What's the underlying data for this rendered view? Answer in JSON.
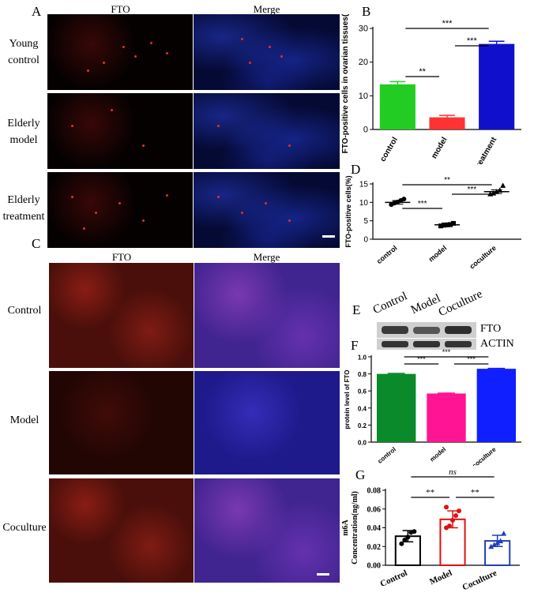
{
  "panels": {
    "A": {
      "letter": "A",
      "col_fto": "FTO",
      "col_merge": "Merge",
      "rows": [
        "Young\ncontrol",
        "Elderly\nmodel",
        "Elderly\ntreatment"
      ]
    },
    "C": {
      "letter": "C",
      "col_fto": "FTO",
      "col_merge": "Merge",
      "rows": [
        "Control",
        "Model",
        "Coculture"
      ]
    },
    "E": {
      "letter": "E",
      "lanes": [
        "Control",
        "Model",
        "Coculture"
      ],
      "band1": "FTO",
      "band2": "ACTIN"
    }
  },
  "chart_data": [
    {
      "panel": "B",
      "type": "bar",
      "categories": [
        "control",
        "model",
        "treatment"
      ],
      "values": [
        13.4,
        3.6,
        25.4
      ],
      "errors": [
        0.8,
        0.6,
        0.8
      ],
      "colors": [
        "#22cc22",
        "#ff3333",
        "#1010cc"
      ],
      "ylabel": "FTO-positive cells in ovarian tissues(%)",
      "ylim": [
        0,
        30
      ],
      "yticks": [
        0,
        10,
        20,
        30
      ],
      "significance": [
        {
          "from": 0,
          "to": 1,
          "label": "**"
        },
        {
          "from": 1,
          "to": 2,
          "label": "***"
        },
        {
          "from": 0,
          "to": 2,
          "label": "***"
        }
      ]
    },
    {
      "panel": "D",
      "type": "scatter",
      "categories": [
        "control",
        "model",
        "coculture"
      ],
      "points": [
        [
          9.4,
          9.8,
          10.1,
          10.5,
          10.9
        ],
        [
          3.6,
          3.8,
          3.9,
          4.0,
          4.3
        ],
        [
          12.3,
          12.5,
          12.9,
          13.3,
          14.6
        ]
      ],
      "means": [
        10.0,
        3.9,
        12.9
      ],
      "ylabel": "FTO-positive cells(%)",
      "ylim": [
        0,
        15
      ],
      "yticks": [
        0,
        5,
        10,
        15
      ],
      "significance": [
        {
          "from": 0,
          "to": 1,
          "label": "***"
        },
        {
          "from": 1,
          "to": 2,
          "label": "***"
        },
        {
          "from": 0,
          "to": 2,
          "label": "**"
        }
      ]
    },
    {
      "panel": "F",
      "type": "bar",
      "categories": [
        "control",
        "model",
        "coculture"
      ],
      "values": [
        0.8,
        0.57,
        0.86
      ],
      "errors": [
        0.005,
        0.004,
        0.005
      ],
      "colors": [
        "#0a8a2a",
        "#ff1493",
        "#0f1fff"
      ],
      "ylabel": "protein level of FTO",
      "ylim": [
        0,
        1.0
      ],
      "yticks": [
        0.0,
        0.2,
        0.4,
        0.6,
        0.8,
        1.0
      ],
      "significance": [
        {
          "from": 0,
          "to": 1,
          "label": "***"
        },
        {
          "from": 1,
          "to": 2,
          "label": "***"
        },
        {
          "from": 0,
          "to": 2,
          "label": "***"
        }
      ]
    },
    {
      "panel": "G",
      "type": "bar",
      "categories": [
        "Control",
        "Model",
        "Coculture"
      ],
      "values": [
        0.031,
        0.049,
        0.026
      ],
      "errors": [
        0.006,
        0.009,
        0.006
      ],
      "colors": [
        "#000000",
        "#dd1111",
        "#1f3fbf"
      ],
      "points": [
        [
          0.023,
          0.027,
          0.03,
          0.035,
          0.036
        ],
        [
          0.04,
          0.042,
          0.048,
          0.053,
          0.058,
          0.062
        ],
        [
          0.02,
          0.022,
          0.024,
          0.026,
          0.034
        ]
      ],
      "ylabel_1": "m6A",
      "ylabel_2": "Concentration(ng/ml)",
      "ylim": [
        0,
        0.08
      ],
      "yticks": [
        0.0,
        0.02,
        0.04,
        0.06,
        0.08
      ],
      "significance": [
        {
          "from": 0,
          "to": 1,
          "label": "**"
        },
        {
          "from": 1,
          "to": 2,
          "label": "**"
        },
        {
          "from": 0,
          "to": 2,
          "label": "ns"
        }
      ]
    }
  ]
}
